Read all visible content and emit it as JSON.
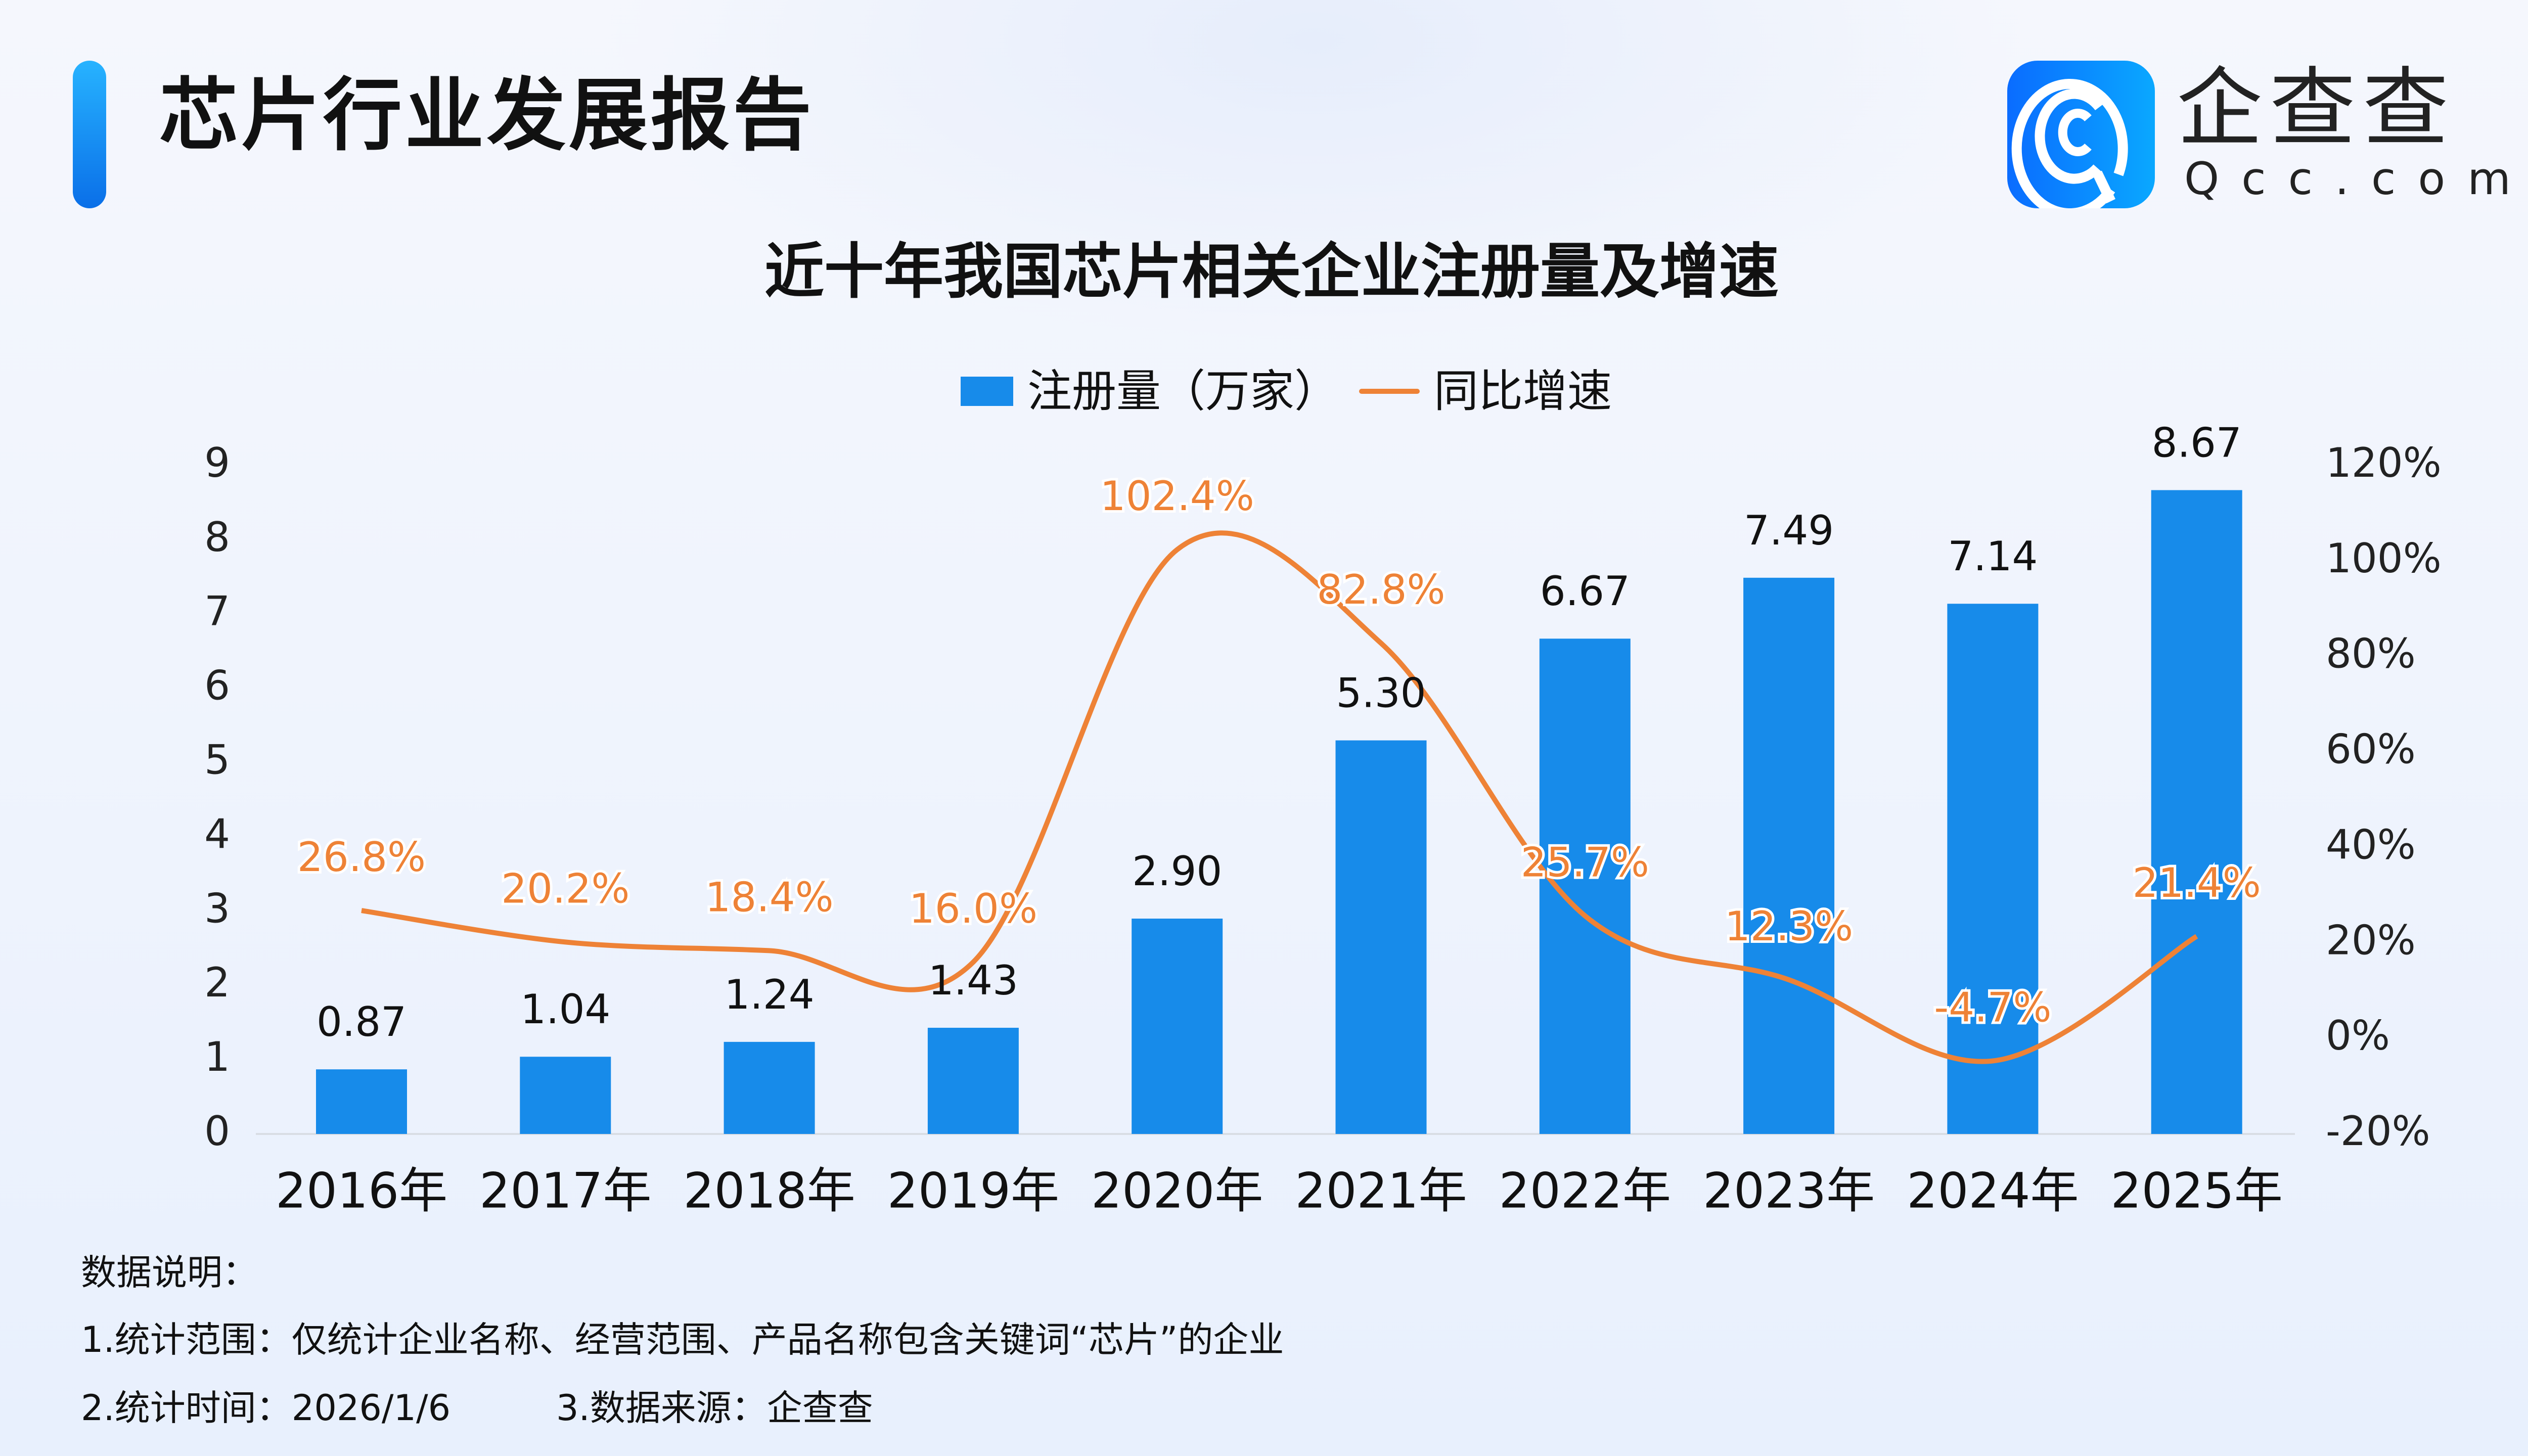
{
  "header": {
    "title": "芯片行业发展报告"
  },
  "logo": {
    "name_cn": "企查查",
    "name_en": "Qcc.com"
  },
  "colors": {
    "bar": "#178BEA",
    "line": "#EE8236",
    "accent": "#1A8CF0"
  },
  "chart_data": {
    "type": "bar+line",
    "title": "近十年我国芯片相关企业注册量及增速",
    "legend_position": "top",
    "categories": [
      "2016年",
      "2017年",
      "2018年",
      "2019年",
      "2020年",
      "2021年",
      "2022年",
      "2023年",
      "2024年",
      "2025年"
    ],
    "series": [
      {
        "name": "注册量（万家）",
        "type": "bar",
        "axis": "left",
        "values": [
          0.87,
          1.04,
          1.24,
          1.43,
          2.9,
          5.3,
          6.67,
          7.49,
          7.14,
          8.67
        ],
        "labels": [
          "0.87",
          "1.04",
          "1.24",
          "1.43",
          "2.90",
          "5.30",
          "6.67",
          "7.49",
          "7.14",
          "8.67"
        ]
      },
      {
        "name": "同比增速",
        "type": "line",
        "axis": "right",
        "smooth": true,
        "values": [
          26.8,
          20.2,
          18.4,
          16.0,
          102.4,
          82.8,
          25.7,
          12.3,
          -4.7,
          21.4
        ],
        "labels": [
          "26.8%",
          "20.2%",
          "18.4%",
          "16.0%",
          "102.4%",
          "82.8%",
          "25.7%",
          "12.3%",
          "-4.7%",
          "21.4%"
        ]
      }
    ],
    "y_left": {
      "min": 0,
      "max": 9,
      "ticks": [
        "0",
        "1",
        "2",
        "3",
        "4",
        "5",
        "6",
        "7",
        "8",
        "9"
      ]
    },
    "y_right": {
      "min": -20,
      "max": 120,
      "ticks": [
        "-20%",
        "0%",
        "20%",
        "40%",
        "60%",
        "80%",
        "100%",
        "120%"
      ]
    },
    "grid": false
  },
  "notes": {
    "heading": "数据说明：",
    "line1": "1.统计范围：仅统计企业名称、经营范围、产品名称包含关键词“芯片”的企业",
    "line2a": "2.统计时间：2026/1/6",
    "line2b": "3.数据来源：企查查"
  }
}
